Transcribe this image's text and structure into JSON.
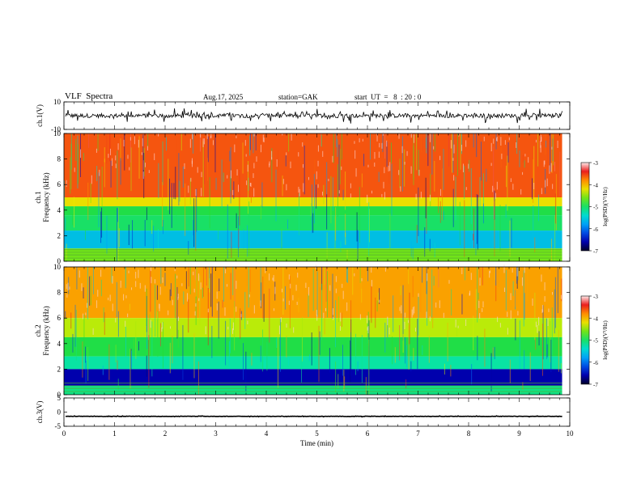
{
  "header": {
    "title": "VLF  Spectra",
    "date": "Aug.17, 2025",
    "station": "station=GAK",
    "start_ut": "start  UT  =   8  : 20 : 0"
  },
  "chart_data": {
    "type": "heatmap",
    "title": "VLF  Spectra",
    "xlabel": "Time  (min)",
    "xlim": [
      0,
      10
    ],
    "x_ticks": [
      "0",
      "1",
      "2",
      "3",
      "4",
      "5",
      "6",
      "7",
      "8",
      "9",
      "10"
    ],
    "data_end_min": 9.85,
    "panels": [
      {
        "id": "ch1-waveform",
        "ylabel": "ch.1(V)",
        "type": "line",
        "ylim": [
          -10,
          10
        ],
        "y_ticks": [
          "10",
          "-10"
        ],
        "baseline": 0,
        "amplitude": 3
      },
      {
        "id": "ch1-spectrogram",
        "ylabel_top": "ch.1",
        "ylabel": "Frequency  (kHz)",
        "type": "heatmap",
        "ylim": [
          0,
          10
        ],
        "y_ticks": [
          "10",
          "8",
          "6",
          "4",
          "2",
          "0"
        ],
        "bands": [
          {
            "fmin": 5.0,
            "fmax": 10.0,
            "log_psd": -3.6
          },
          {
            "fmin": 4.3,
            "fmax": 5.0,
            "log_psd": -4.2
          },
          {
            "fmin": 3.6,
            "fmax": 4.3,
            "log_psd": -4.9
          },
          {
            "fmin": 2.4,
            "fmax": 3.6,
            "log_psd": -5.0
          },
          {
            "fmin": 1.0,
            "fmax": 2.4,
            "log_psd": -5.6
          },
          {
            "fmin": 0.0,
            "fmax": 1.0,
            "log_psd": -4.6
          }
        ],
        "colorbar": {
          "label": "log(PSD)(V²/Hz)",
          "range": [
            -7,
            -3
          ],
          "ticks": [
            "-3",
            "-4",
            "-5",
            "-6",
            "-7"
          ]
        }
      },
      {
        "id": "ch2-spectrogram",
        "ylabel_top": "ch.2",
        "ylabel": "Frequency  (kHz)",
        "type": "heatmap",
        "ylim": [
          0,
          10
        ],
        "y_ticks": [
          "10",
          "8",
          "6",
          "4",
          "2",
          "0"
        ],
        "bands": [
          {
            "fmin": 6.0,
            "fmax": 10.0,
            "log_psd": -3.9
          },
          {
            "fmin": 4.5,
            "fmax": 6.0,
            "log_psd": -4.4
          },
          {
            "fmin": 3.0,
            "fmax": 4.5,
            "log_psd": -4.9
          },
          {
            "fmin": 2.0,
            "fmax": 3.0,
            "log_psd": -5.2
          },
          {
            "fmin": 0.7,
            "fmax": 2.0,
            "log_psd": -6.6
          },
          {
            "fmin": 0.0,
            "fmax": 0.7,
            "log_psd": -5.1
          }
        ],
        "colorbar": {
          "label": "log(PSD)(V²/Hz)",
          "range": [
            -7,
            -3
          ],
          "ticks": [
            "-3",
            "-4",
            "-5",
            "-6",
            "-7"
          ]
        }
      },
      {
        "id": "ch3-waveform",
        "ylabel": "ch.3(V)",
        "type": "line",
        "ylim": [
          -5,
          5
        ],
        "y_ticks": [
          "5",
          "0",
          "-5"
        ],
        "baseline": -1.5,
        "amplitude": 0.1
      }
    ]
  }
}
